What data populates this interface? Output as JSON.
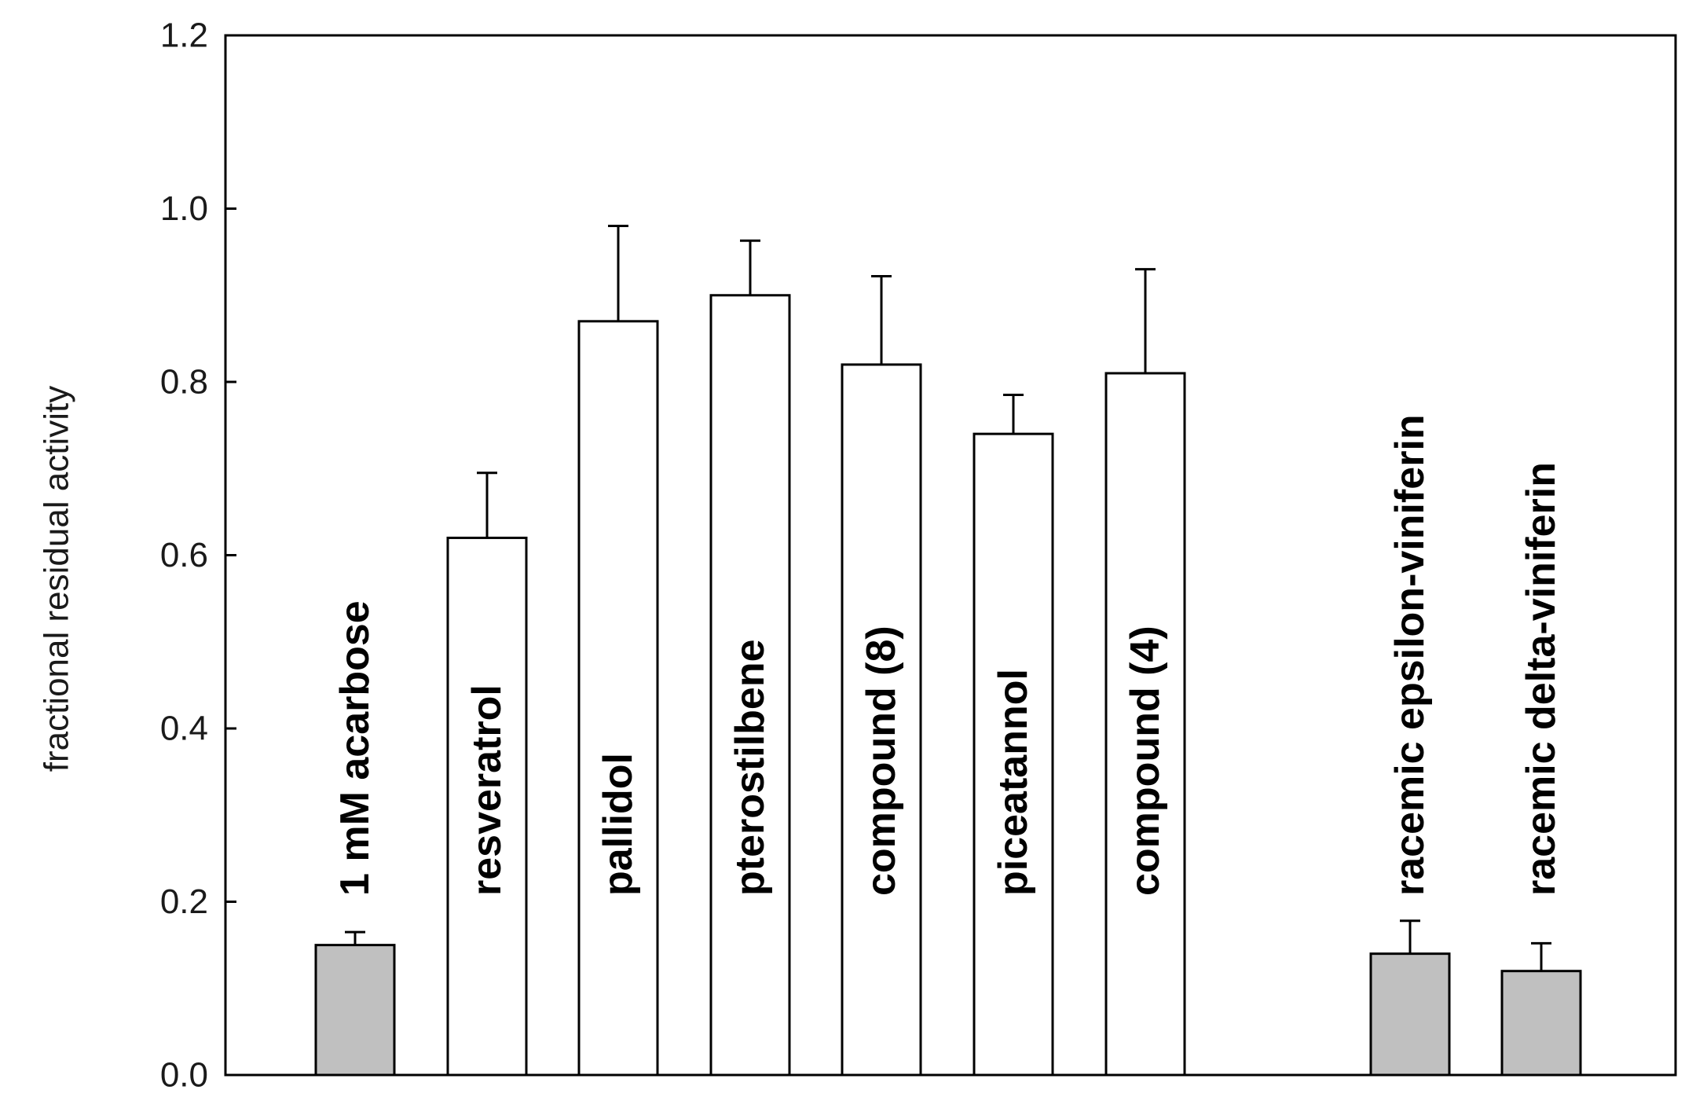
{
  "chart_data": {
    "type": "bar",
    "title": "",
    "xlabel": "",
    "ylabel": "fractional residual activity",
    "ylim": [
      0,
      1.2
    ],
    "yticks": [
      "0.0",
      "0.2",
      "0.4",
      "0.6",
      "0.8",
      "1.0",
      "1.2"
    ],
    "grid": false,
    "legend": "none",
    "categories": [
      "1 mM acarbose",
      "resveratrol",
      "pallidol",
      "pterostilbene",
      "compound (8)",
      "piceatannol",
      "compound (4)",
      "racemic epsilon-viniferin",
      "racemic delta-viniferin"
    ],
    "values": [
      0.15,
      0.62,
      0.87,
      0.9,
      0.82,
      0.74,
      0.81,
      0.14,
      0.12
    ],
    "error_upper": [
      0.165,
      0.695,
      0.98,
      0.963,
      0.922,
      0.785,
      0.93,
      0.178,
      0.152
    ],
    "fill_colors": [
      "#c0c0c0",
      "#ffffff",
      "#ffffff",
      "#ffffff",
      "#ffffff",
      "#ffffff",
      "#ffffff",
      "#c0c0c0",
      "#c0c0c0"
    ],
    "colors": {
      "axis": "#000000",
      "bar_stroke": "#000000",
      "text": "#1a1a1a"
    }
  }
}
